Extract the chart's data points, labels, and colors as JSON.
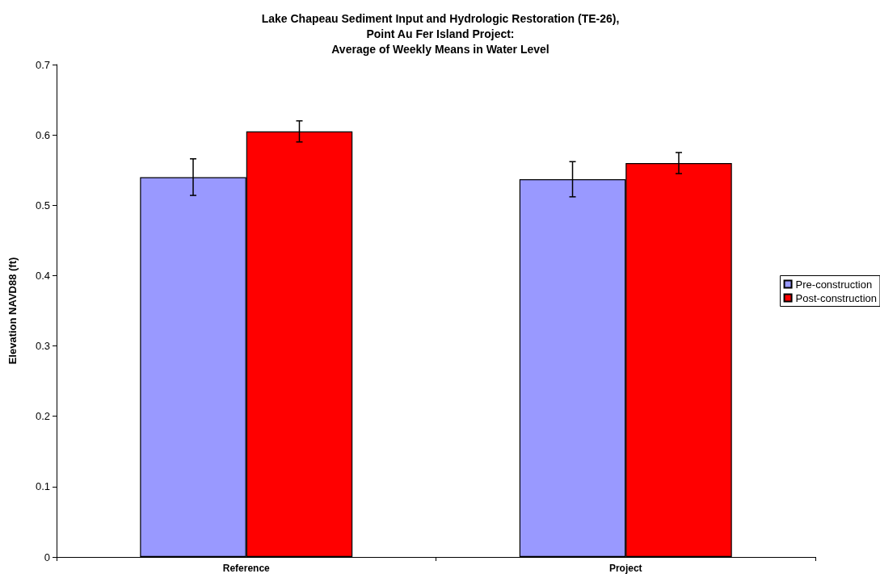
{
  "chart_data": {
    "type": "bar",
    "title": "Lake Chapeau Sediment Input and Hydrologic Restoration (TE-26),\nPoint Au Fer Island Project:\nAverage of Weekly Means in Water Level",
    "ylabel": "Elevation NAVD88 (ft)",
    "categories": [
      "Reference",
      "Project"
    ],
    "series": [
      {
        "name": "Pre-construction",
        "color": "#9999ff",
        "values": [
          0.54,
          0.537
        ],
        "errors": [
          0.026,
          0.025
        ]
      },
      {
        "name": "Post-construction",
        "color": "#ff0000",
        "values": [
          0.605,
          0.56
        ],
        "errors": [
          0.015,
          0.015
        ]
      }
    ],
    "ylim": [
      0,
      0.7
    ],
    "yticks": [
      0,
      0.1,
      0.2,
      0.3,
      0.4,
      0.5,
      0.6,
      0.7
    ],
    "grid": false,
    "legend": "right"
  }
}
